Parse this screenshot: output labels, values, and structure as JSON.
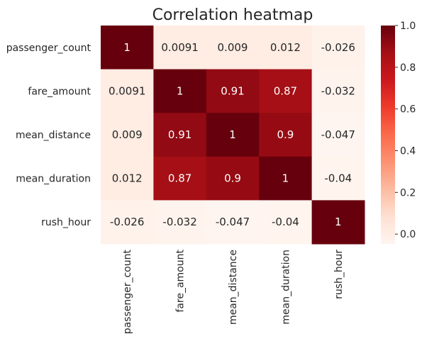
{
  "chart_data": {
    "type": "heatmap",
    "title": "Correlation heatmap",
    "xlabel": "",
    "ylabel": "",
    "rows": [
      "passenger_count",
      "fare_amount",
      "mean_distance",
      "mean_duration",
      "rush_hour"
    ],
    "columns": [
      "passenger_count",
      "fare_amount",
      "mean_distance",
      "mean_duration",
      "rush_hour"
    ],
    "values": [
      [
        1,
        0.0091,
        0.009,
        0.012,
        -0.026
      ],
      [
        0.0091,
        1,
        0.91,
        0.87,
        -0.032
      ],
      [
        0.009,
        0.91,
        1,
        0.9,
        -0.047
      ],
      [
        0.012,
        0.87,
        0.9,
        1,
        -0.04
      ],
      [
        -0.026,
        -0.032,
        -0.047,
        -0.04,
        1
      ]
    ],
    "cell_labels": [
      [
        "1",
        "0.0091",
        "0.009",
        "0.012",
        "-0.026"
      ],
      [
        "0.0091",
        "1",
        "0.91",
        "0.87",
        "-0.032"
      ],
      [
        "0.009",
        "0.91",
        "1",
        "0.9",
        "-0.047"
      ],
      [
        "0.012",
        "0.87",
        "0.9",
        "1",
        "-0.04"
      ],
      [
        "-0.026",
        "-0.032",
        "-0.047",
        "-0.04",
        "1"
      ]
    ],
    "colormap": "Reds",
    "colormap_stops": [
      "#fff5f0",
      "#fee0d2",
      "#fcbba1",
      "#fc9272",
      "#fb6a4a",
      "#ef3b2c",
      "#cb181d",
      "#a50f15",
      "#67000d"
    ],
    "colorbar": {
      "range": [
        -0.047,
        1
      ],
      "ticks": [
        0.0,
        0.2,
        0.4,
        0.6,
        0.8,
        1.0
      ],
      "tick_labels": [
        "0.0",
        "0.2",
        "0.4",
        "0.6",
        "0.8",
        "1.0"
      ]
    },
    "light_text_color": "#ffffff",
    "dark_text_color": "#262626"
  }
}
